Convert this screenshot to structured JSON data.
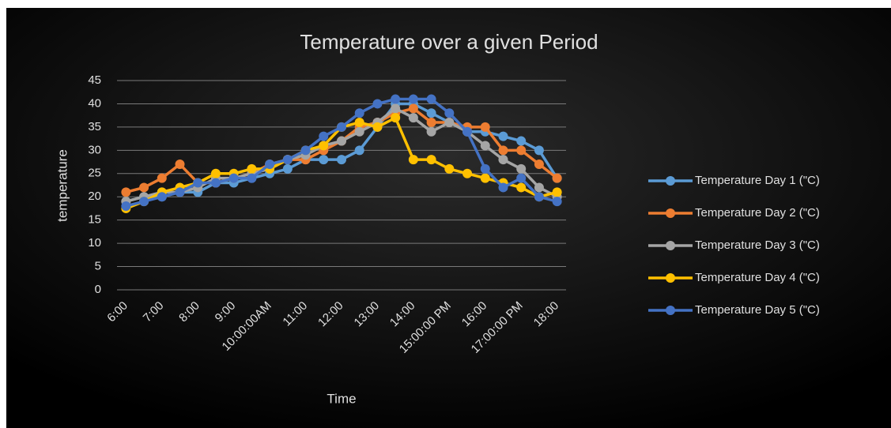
{
  "chart_data": {
    "type": "line",
    "title": "Temperature  over a given Period",
    "x_label": "Time",
    "y_label": "temperature",
    "categories": [
      "6:00",
      null,
      "7:00",
      null,
      "8:00",
      null,
      "9:00",
      null,
      "10:00:00AM",
      null,
      "11:00",
      null,
      "12:00",
      null,
      "13:00",
      null,
      "14:00",
      null,
      "15:00:00 PM",
      null,
      "16:00",
      null,
      "17:00:00 PM",
      null,
      "18:00"
    ],
    "ylim": [
      0,
      45
    ],
    "yticks": [
      0,
      5,
      10,
      15,
      20,
      25,
      30,
      35,
      40,
      45
    ],
    "grid": true,
    "legend": "right",
    "series": [
      {
        "name": "Temperature Day 1 (\"C)",
        "color": "#5b9bd5",
        "values": [
          19,
          20,
          20,
          21,
          21,
          23,
          23,
          24,
          25,
          26,
          28,
          28,
          28,
          30,
          35,
          40,
          40,
          38,
          36,
          34,
          34,
          33,
          32,
          30,
          24
        ]
      },
      {
        "name": "Temperature Day 2 (\"C)",
        "color": "#ed7d31",
        "values": [
          21,
          22,
          24,
          27,
          23,
          23,
          24,
          25,
          27,
          28,
          28,
          30,
          32,
          35,
          36,
          38,
          39,
          36,
          36,
          35,
          35,
          30,
          30,
          27,
          24
        ]
      },
      {
        "name": "Temperature Day 3 (\"C)",
        "color": "#a5a5a5",
        "values": [
          19,
          20,
          21,
          21,
          22,
          24,
          24,
          25,
          26,
          28,
          29,
          31,
          32,
          34,
          36,
          39,
          37,
          34,
          36,
          34,
          31,
          28,
          26,
          22,
          20
        ]
      },
      {
        "name": "Temperature Day 4 (\"C)",
        "color": "#ffc000",
        "values": [
          17.5,
          19,
          21,
          22,
          23,
          25,
          25,
          26,
          26,
          28,
          30,
          31,
          35,
          36,
          35,
          37,
          28,
          28,
          26,
          25,
          24,
          23,
          22,
          20,
          21
        ]
      },
      {
        "name": "Temperature Day 5 (\"C)",
        "color": "#4472c4",
        "values": [
          18,
          19,
          20,
          21,
          23,
          23,
          24,
          24,
          27,
          28,
          30,
          33,
          35,
          38,
          40,
          41,
          41,
          41,
          38,
          34,
          26,
          22,
          24,
          20,
          19
        ]
      }
    ]
  }
}
